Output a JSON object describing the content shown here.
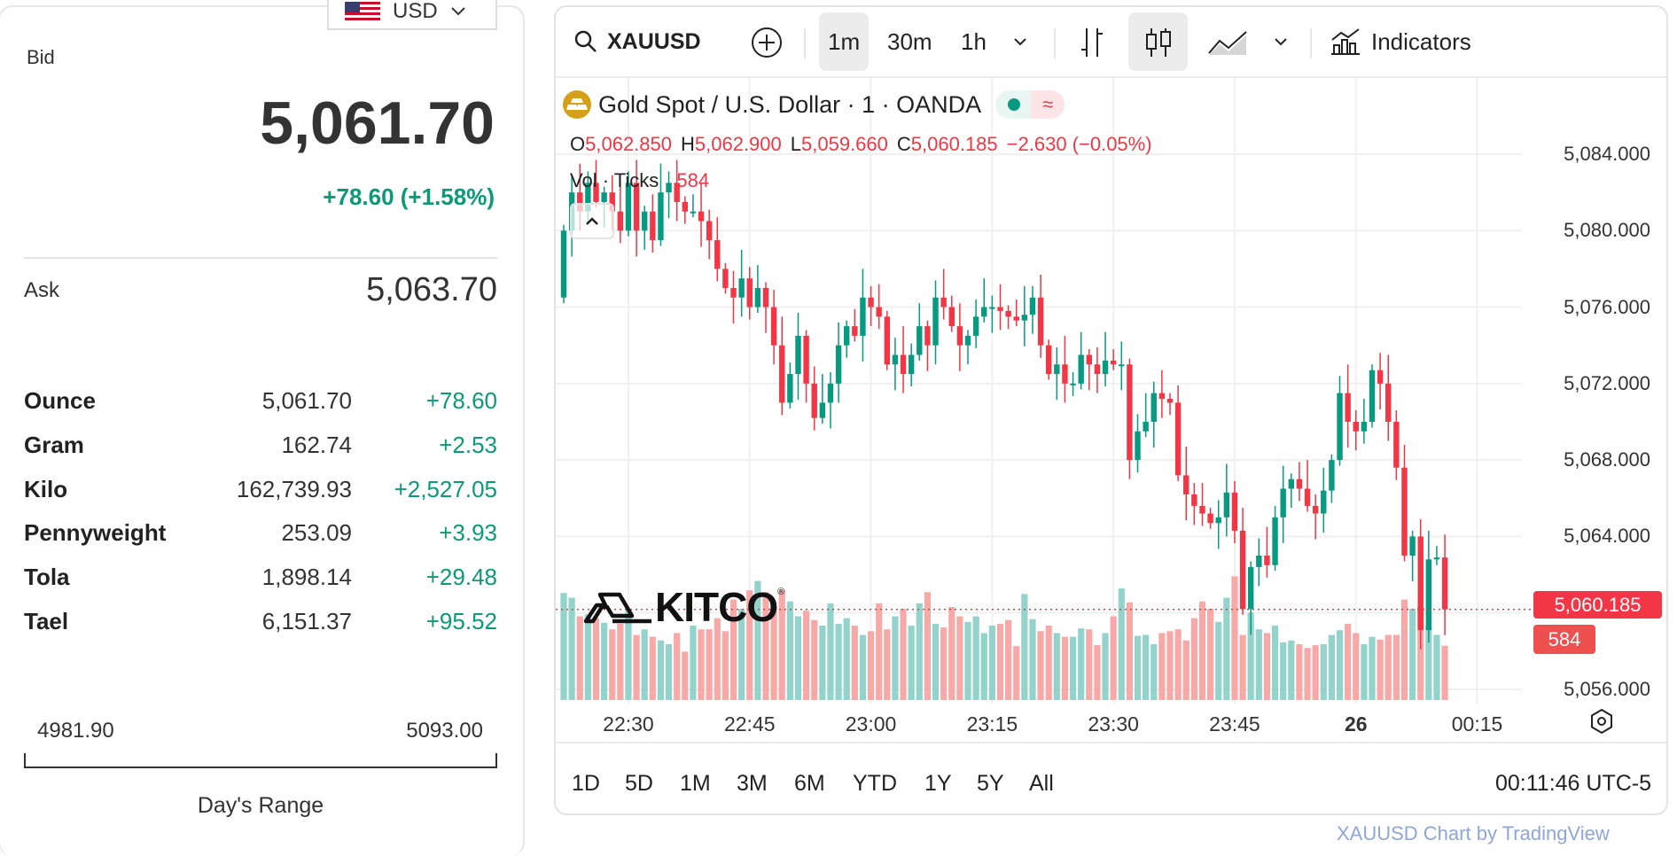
{
  "currency": {
    "label": "USD",
    "flag": "us-flag-icon"
  },
  "bid": {
    "label": "Bid",
    "value": "5,061.70",
    "change": "+78.60 (+1.58%)"
  },
  "ask": {
    "label": "Ask",
    "value": "5,063.70"
  },
  "units": [
    {
      "label": "Ounce",
      "value": "5,061.70",
      "change": "+78.60"
    },
    {
      "label": "Gram",
      "value": "162.74",
      "change": "+2.53"
    },
    {
      "label": "Kilo",
      "value": "162,739.93",
      "change": "+2,527.05"
    },
    {
      "label": "Pennyweight",
      "value": "253.09",
      "change": "+3.93"
    },
    {
      "label": "Tola",
      "value": "1,898.14",
      "change": "+29.48"
    },
    {
      "label": "Tael",
      "value": "6,151.37",
      "change": "+95.52"
    }
  ],
  "day_range": {
    "low": "4981.90",
    "high": "5093.00",
    "label": "Day's Range"
  },
  "toolbar": {
    "symbol": "XAUUSD",
    "intervals": [
      "1m",
      "30m",
      "1h"
    ],
    "indicators": "Indicators"
  },
  "legend": {
    "title": "Gold Spot / U.S. Dollar · 1 · OANDA",
    "o_label": "O",
    "o": "5,062.850",
    "h_label": "H",
    "h": "5,062.900",
    "l_label": "L",
    "l": "5,059.660",
    "c_label": "C",
    "c": "5,060.185",
    "change": "−2.630 (−0.05%)",
    "vol_label": "Vol · Ticks",
    "vol": "584"
  },
  "ranges": [
    "1D",
    "5D",
    "1M",
    "3M",
    "6M",
    "YTD",
    "1Y",
    "5Y",
    "All"
  ],
  "clock": "00:11:46 UTC-5",
  "logo": "KITCO",
  "attribution": "XAUUSD Chart by TradingView",
  "colors": {
    "up": "#089981",
    "down": "#f23645",
    "vol_up": "#93d3cc",
    "vol_down": "#f7a9a8",
    "accent_green": "#0b9a78"
  },
  "chart_data": {
    "type": "candlestick",
    "interval": "1m",
    "ylim": [
      5054.5,
      5086
    ],
    "y_ticks": [
      "5,084.000",
      "5,080.000",
      "5,076.000",
      "5,072.000",
      "5,068.000",
      "5,064.000",
      "5,060.000",
      "5,056.000"
    ],
    "y_tick_values": [
      5084,
      5080,
      5076,
      5072,
      5068,
      5064,
      5060,
      5056
    ],
    "x_ticks": [
      {
        "label": "22:30",
        "index": 8
      },
      {
        "label": "22:45",
        "index": 23
      },
      {
        "label": "23:00",
        "index": 38
      },
      {
        "label": "23:15",
        "index": 53
      },
      {
        "label": "23:30",
        "index": 68
      },
      {
        "label": "23:45",
        "index": 83
      },
      {
        "label": "26",
        "index": 98,
        "bold": true
      },
      {
        "label": "00:15",
        "index": 113
      }
    ],
    "last_price": "5,060.185",
    "last_price_value": 5060.185,
    "last_volume": "584",
    "first_open": 5076.5,
    "closes": [
      5080,
      5082,
      5081,
      5082.5,
      5081.5,
      5082,
      5081,
      5080,
      5082.5,
      5080,
      5081,
      5079.5,
      5082,
      5082.5,
      5081.5,
      5081,
      5081,
      5080.5,
      5079.5,
      5078,
      5077,
      5076.5,
      5077.5,
      5076,
      5077,
      5076,
      5074,
      5071,
      5072.5,
      5074.5,
      5072,
      5070.2,
      5071,
      5072,
      5074,
      5075,
      5074.5,
      5076.5,
      5076,
      5075.5,
      5073,
      5073.5,
      5072.5,
      5073.5,
      5075,
      5074,
      5076.5,
      5076,
      5075,
      5074,
      5074.5,
      5075.5,
      5076,
      5076,
      5075.8,
      5075.5,
      5075.3,
      5075.6,
      5076.5,
      5074,
      5072.5,
      5073,
      5072,
      5072,
      5073.5,
      5073,
      5072.5,
      5073.2,
      5073,
      5073,
      5068,
      5069.5,
      5070,
      5071.5,
      5071.2,
      5071,
      5067.2,
      5066.2,
      5065.6,
      5065.2,
      5064.7,
      5065,
      5066.3,
      5064.3,
      5060.2,
      5062.4,
      5063,
      5062.5,
      5065,
      5066.5,
      5067,
      5066.5,
      5065.6,
      5065.2,
      5066.4,
      5068,
      5071.5,
      5070,
      5069.5,
      5070,
      5072.7,
      5072,
      5070,
      5067.6,
      5063,
      5064,
      5059.1,
      5062.8,
      5062.9,
      5060.185
    ],
    "volumes": [
      1150,
      1100,
      900,
      920,
      880,
      830,
      760,
      820,
      980,
      700,
      760,
      680,
      640,
      600,
      720,
      520,
      800,
      760,
      760,
      880,
      740,
      1080,
      980,
      1180,
      1280,
      1160,
      1010,
      1180,
      1060,
      900,
      960,
      860,
      800,
      1040,
      820,
      880,
      800,
      700,
      740,
      1040,
      760,
      900,
      980,
      800,
      1040,
      1160,
      820,
      780,
      1000,
      900,
      840,
      900,
      720,
      800,
      820,
      860,
      580,
      1140,
      870,
      740,
      800,
      720,
      680,
      680,
      770,
      760,
      590,
      720,
      900,
      1200,
      1050,
      690,
      700,
      600,
      720,
      740,
      760,
      640,
      880,
      1060,
      980,
      840,
      1100,
      1330,
      700,
      940,
      760,
      720,
      800,
      620,
      640,
      600,
      560,
      590,
      600,
      700,
      750,
      820,
      720,
      600,
      680,
      650,
      700,
      700,
      1080,
      980,
      1000,
      800,
      700,
      584
    ]
  }
}
